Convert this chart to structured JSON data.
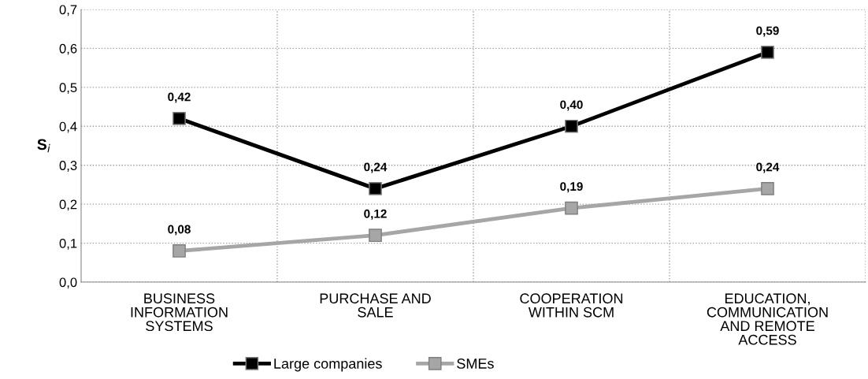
{
  "chart_data": {
    "type": "line",
    "categories": [
      "BUSINESS\nINFORMATION\nSYSTEMS",
      "PURCHASE AND\nSALE",
      "COOPERATION\nWITHIN SCM",
      "EDUCATION,\nCOMMUNICATION\nAND REMOTE\nACCESS"
    ],
    "ylabel": "S$_{i}$",
    "series": [
      {
        "name": "Large companies",
        "color": "#000000",
        "values": [
          0.42,
          0.24,
          0.4,
          0.59
        ],
        "value_labels": [
          "0,42",
          "0,24",
          "0,40",
          "0,59"
        ]
      },
      {
        "name": "SMEs",
        "color": "#a6a6a6",
        "values": [
          0.08,
          0.12,
          0.19,
          0.24
        ],
        "value_labels": [
          "0,08",
          "0,12",
          "0,19",
          "0,24"
        ]
      }
    ],
    "ylim": [
      0,
      0.7
    ],
    "yticks": [
      {
        "value": 0,
        "label": "0,0"
      },
      {
        "value": 0.1,
        "label": "0,1"
      },
      {
        "value": 0.2,
        "label": "0,2"
      },
      {
        "value": 0.3,
        "label": "0,3"
      },
      {
        "value": 0.4,
        "label": "0,4"
      },
      {
        "value": 0.5,
        "label": "0,5"
      },
      {
        "value": 0.6,
        "label": "0,6"
      },
      {
        "value": 0.7,
        "label": "0,7"
      }
    ],
    "grid": true,
    "legend": "bottom",
    "marker": "square",
    "line_style": "solid"
  }
}
